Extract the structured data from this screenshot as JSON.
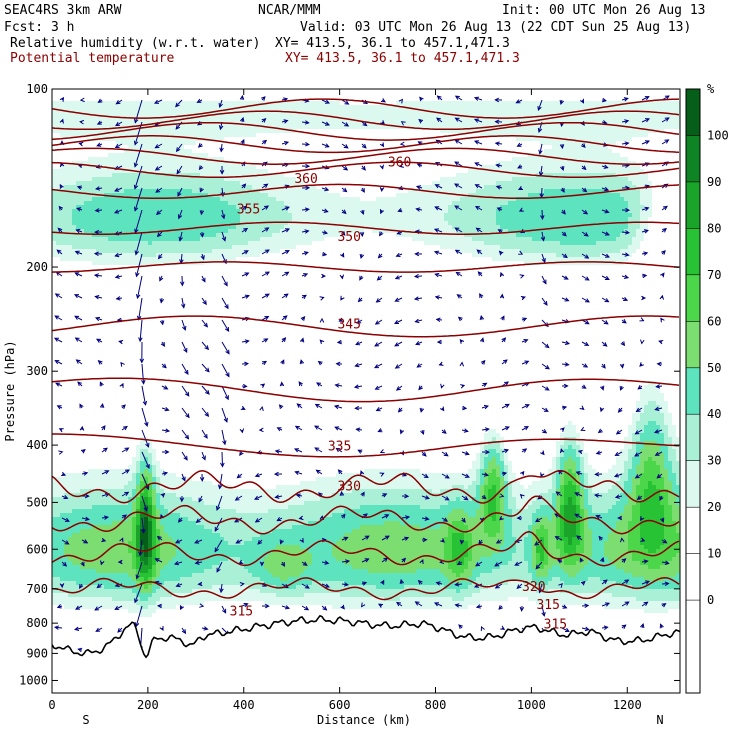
{
  "header": {
    "model": "SEAC4RS  3km ARW",
    "org": "NCAR/MMM",
    "init": "Init: 00 UTC Mon 26 Aug 13",
    "fcst": "Fcst:    3 h",
    "valid": "Valid: 03 UTC Mon 26 Aug 13 (22 CDT Sun 25 Aug 13)",
    "field1": "Relative humidity (w.r.t. water)",
    "xy1": "XY= 413.5, 36.1 to 457.1,471.3",
    "field2": "Potential temperature",
    "xy2": "XY= 413.5, 36.1 to 457.1,471.3"
  },
  "colors": {
    "theta": "#8b0000",
    "terrain": "#000000",
    "vectors": "#000080",
    "rh_scale": [
      "#ffffff",
      "#ffffff",
      "#ffffff",
      "#ffffff",
      "#dcf9ef",
      "#aaf0d6",
      "#5ee3bf",
      "#7cde71",
      "#4cd74a",
      "#27c334",
      "#1aa52a",
      "#0f8424",
      "#065f18"
    ]
  },
  "chart_data": {
    "type": "cross-section",
    "xlabel": "Distance (km)",
    "ylabel": "Pressure (hPa)",
    "x_ticks": [
      "0",
      "200",
      "400",
      "600",
      "800",
      "1000",
      "1200"
    ],
    "y_ticks": [
      "100",
      "200",
      "300",
      "400",
      "500",
      "600",
      "700",
      "800",
      "900",
      "1000"
    ],
    "xlim": [
      0,
      1310
    ],
    "ylim": [
      100,
      1050
    ],
    "end_labels": {
      "left": "S",
      "right": "N"
    },
    "colorbar": {
      "unit": "%",
      "tick_labels": [
        "100",
        "90",
        "80",
        "70",
        "60",
        "50",
        "40",
        "30",
        "20",
        "10",
        "0"
      ],
      "levels": [
        -10,
        0,
        10,
        20,
        30,
        40,
        50,
        60,
        70,
        80,
        90,
        100,
        110
      ]
    },
    "theta_contour_labels": [
      {
        "text": "355",
        "x": 410,
        "p": 160
      },
      {
        "text": "360",
        "x": 530,
        "p": 142
      },
      {
        "text": "360",
        "x": 725,
        "p": 133
      },
      {
        "text": "350",
        "x": 620,
        "p": 178
      },
      {
        "text": "345",
        "x": 620,
        "p": 250
      },
      {
        "text": "335",
        "x": 600,
        "p": 402
      },
      {
        "text": "330",
        "x": 620,
        "p": 470
      },
      {
        "text": "320",
        "x": 1005,
        "p": 695
      },
      {
        "text": "315",
        "x": 1035,
        "p": 745
      },
      {
        "text": "315",
        "x": 395,
        "p": 765
      },
      {
        "text": "315",
        "x": 1050,
        "p": 805
      }
    ],
    "theta_lines_p": [
      108,
      113,
      118,
      124,
      130,
      137,
      149,
      172,
      200,
      252,
      318,
      393,
      472,
      535,
      610,
      700
    ]
  }
}
